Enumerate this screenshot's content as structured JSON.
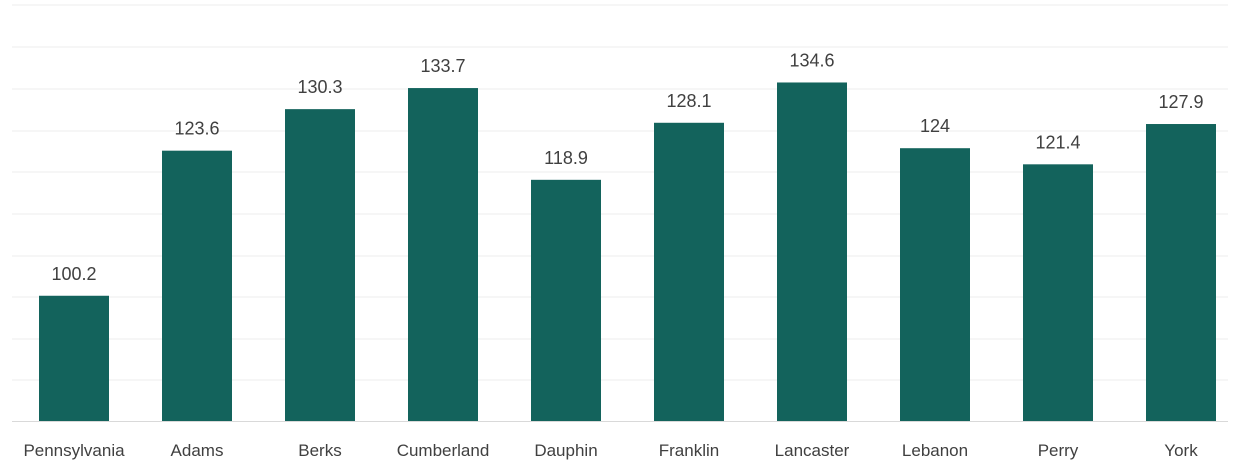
{
  "chart_data": {
    "type": "bar",
    "categories": [
      "Pennsylvania",
      "Adams",
      "Berks",
      "Cumberland",
      "Dauphin",
      "Franklin",
      "Lancaster",
      "Lebanon",
      "Perry",
      "York"
    ],
    "values": [
      100.2,
      123.6,
      130.3,
      133.7,
      118.9,
      128.1,
      134.6,
      124,
      121.4,
      127.9
    ],
    "value_labels": [
      "100.2",
      "123.6",
      "130.3",
      "133.7",
      "118.9",
      "128.1",
      "134.6",
      "124",
      "121.4",
      "127.9"
    ],
    "title": "",
    "xlabel": "",
    "ylabel": "",
    "ylim": [
      80,
      140
    ],
    "grid": true,
    "legend": "none",
    "colors": {
      "bar": "#13635c",
      "gridline": "#ececec",
      "axis": "#d9d9d9",
      "text": "#404040"
    }
  }
}
